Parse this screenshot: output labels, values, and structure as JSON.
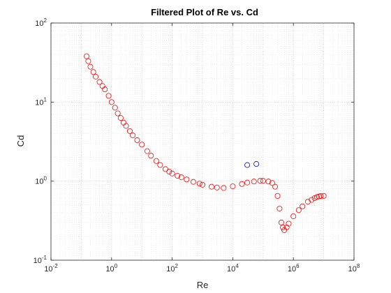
{
  "chart_data": {
    "type": "scatter",
    "title": "Filtered Plot of Re vs. Cd",
    "xlabel": "Re",
    "ylabel": "Cd",
    "x_scale": "log",
    "y_scale": "log",
    "xlim": [
      0.01,
      100000000
    ],
    "ylim": [
      0.1,
      100
    ],
    "grid": true,
    "minor_grid": true,
    "x_ticks": [
      {
        "value": 0.01,
        "base": "10",
        "exp": "-2"
      },
      {
        "value": 1,
        "base": "10",
        "exp": "0"
      },
      {
        "value": 100,
        "base": "10",
        "exp": "2"
      },
      {
        "value": 10000,
        "base": "10",
        "exp": "4"
      },
      {
        "value": 1000000,
        "base": "10",
        "exp": "6"
      },
      {
        "value": 100000000,
        "base": "10",
        "exp": "8"
      }
    ],
    "y_ticks": [
      {
        "value": 0.1,
        "base": "10",
        "exp": "-1"
      },
      {
        "value": 1,
        "base": "10",
        "exp": "0"
      },
      {
        "value": 10,
        "base": "10",
        "exp": "1"
      },
      {
        "value": 100,
        "base": "10",
        "exp": "2"
      }
    ],
    "colors": {
      "filtered": "#ff0000",
      "outliers": "#0000ff"
    },
    "series": [
      {
        "marker": "circle-open",
        "color": "#ff0000",
        "points": [
          [
            0.15,
            38
          ],
          [
            0.17,
            33
          ],
          [
            0.2,
            28
          ],
          [
            0.25,
            24
          ],
          [
            0.3,
            21
          ],
          [
            0.4,
            18
          ],
          [
            0.5,
            16
          ],
          [
            0.6,
            14.5
          ],
          [
            0.8,
            12
          ],
          [
            1,
            10
          ],
          [
            1.3,
            8.5
          ],
          [
            1.6,
            7.2
          ],
          [
            2,
            6.3
          ],
          [
            2.5,
            5.5
          ],
          [
            3,
            5
          ],
          [
            4,
            4.3
          ],
          [
            5,
            3.8
          ],
          [
            7,
            3.3
          ],
          [
            10,
            2.9
          ],
          [
            15,
            2.4
          ],
          [
            20,
            2.1
          ],
          [
            30,
            1.8
          ],
          [
            40,
            1.6
          ],
          [
            60,
            1.42
          ],
          [
            80,
            1.32
          ],
          [
            100,
            1.25
          ],
          [
            150,
            1.17
          ],
          [
            200,
            1.12
          ],
          [
            300,
            1.05
          ],
          [
            500,
            0.98
          ],
          [
            800,
            0.93
          ],
          [
            1000,
            0.9
          ],
          [
            2000,
            0.85
          ],
          [
            3000,
            0.83
          ],
          [
            5000,
            0.82
          ],
          [
            10000,
            0.86
          ],
          [
            20000,
            0.92
          ],
          [
            30000,
            0.96
          ],
          [
            50000,
            0.99
          ],
          [
            80000,
            1.01
          ],
          [
            100000,
            1.01
          ],
          [
            150000,
            0.99
          ],
          [
            200000,
            0.95
          ],
          [
            250000,
            0.85
          ],
          [
            300000,
            0.65
          ],
          [
            350000,
            0.45
          ],
          [
            400000,
            0.3
          ],
          [
            450000,
            0.26
          ],
          [
            500000,
            0.24
          ],
          [
            600000,
            0.26
          ],
          [
            700000,
            0.29
          ],
          [
            1000000,
            0.36
          ],
          [
            1500000,
            0.43
          ],
          [
            2000000,
            0.48
          ],
          [
            3000000,
            0.55
          ],
          [
            4000000,
            0.58
          ],
          [
            5000000,
            0.61
          ],
          [
            6000000,
            0.63
          ],
          [
            7000000,
            0.64
          ],
          [
            8000000,
            0.65
          ],
          [
            10000000,
            0.65
          ]
        ]
      },
      {
        "marker": "circle-open",
        "color": "#0000ff",
        "points": [
          [
            30000,
            1.6
          ],
          [
            60000,
            1.65
          ]
        ]
      }
    ]
  }
}
